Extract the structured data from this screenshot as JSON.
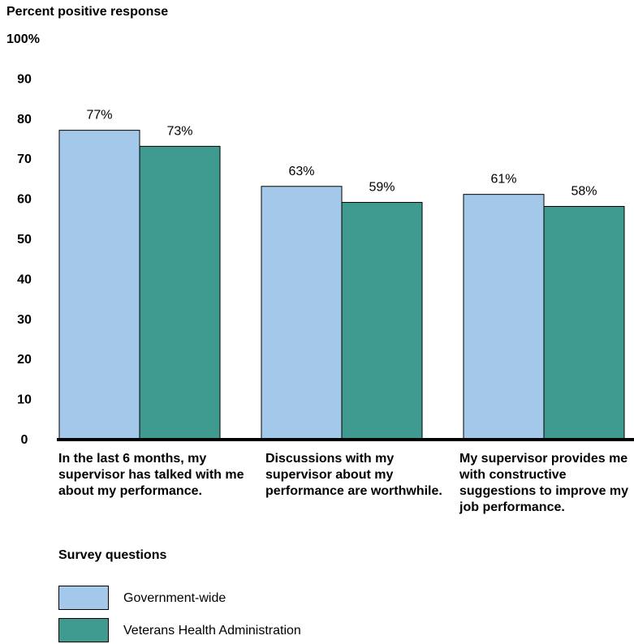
{
  "chart_data": {
    "type": "bar",
    "ylabel": "Percent positive response",
    "xlabel": "Survey questions",
    "ylim": [
      0,
      100
    ],
    "yticks": [
      "0",
      "10",
      "20",
      "30",
      "40",
      "50",
      "60",
      "70",
      "80",
      "90",
      "100%"
    ],
    "categories": [
      "In the last 6 months, my supervisor has talked with me about my performance.",
      "Discussions with my supervisor about my performance are worthwhile.",
      "My supervisor provides me with constructive suggestions to improve my job performance."
    ],
    "series": [
      {
        "name": "Government-wide",
        "color": "#a4c8ea",
        "values": [
          77,
          63,
          61
        ],
        "labels": [
          "77%",
          "63%",
          "61%"
        ]
      },
      {
        "name": "Veterans Health Administration",
        "color": "#3f9a90",
        "values": [
          73,
          59,
          58
        ],
        "labels": [
          "73%",
          "59%",
          "58%"
        ]
      }
    ],
    "legend": "bottom-left",
    "grid": false
  }
}
